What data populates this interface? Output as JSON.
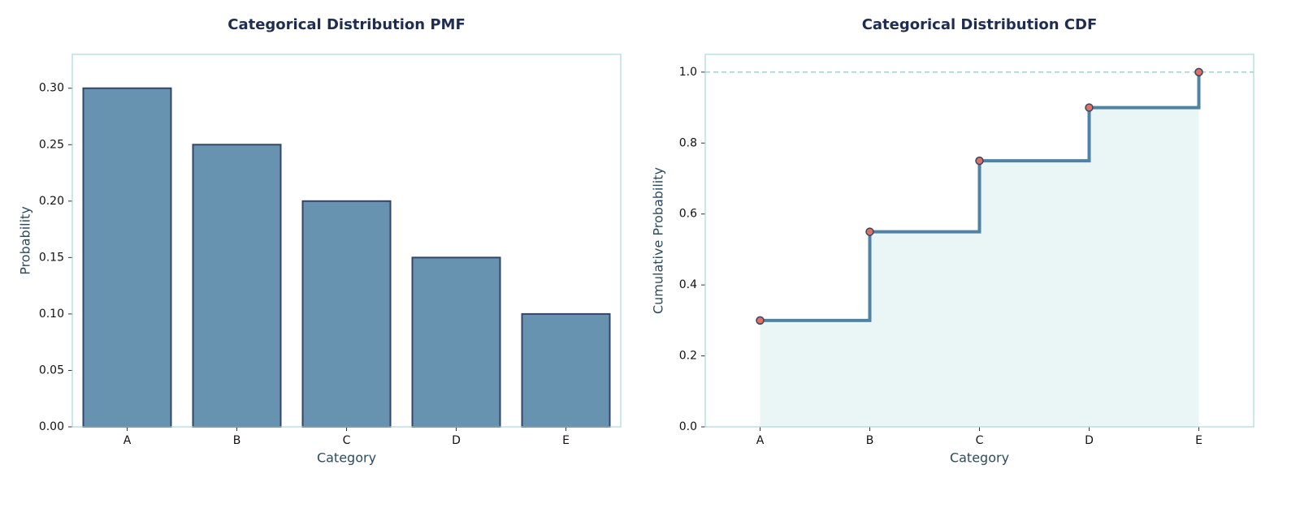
{
  "chart_data": [
    {
      "type": "bar",
      "title": "Categorical Distribution PMF",
      "xlabel": "Category",
      "ylabel": "Probability",
      "categories": [
        "A",
        "B",
        "C",
        "D",
        "E"
      ],
      "values": [
        0.3,
        0.25,
        0.2,
        0.15,
        0.1
      ],
      "color": "#6893b0",
      "edgecolor": "#34456a",
      "ylim": [
        0,
        0.33
      ],
      "yticks": [
        {
          "value": 0,
          "label": "0.00"
        },
        {
          "value": 0.05,
          "label": "0.05"
        },
        {
          "value": 0.1,
          "label": "0.10"
        },
        {
          "value": 0.15,
          "label": "0.15"
        },
        {
          "value": 0.2,
          "label": "0.20"
        },
        {
          "value": 0.25,
          "label": "0.25"
        },
        {
          "value": 0.3,
          "label": "0.30"
        }
      ]
    },
    {
      "type": "step",
      "title": "Categorical Distribution CDF",
      "xlabel": "Category",
      "ylabel": "Cumulative Probability",
      "categories": [
        "A",
        "B",
        "C",
        "D",
        "E"
      ],
      "values": [
        0.3,
        0.55,
        0.75,
        0.9,
        1.0
      ],
      "color": "#4f83a6",
      "marker_color": "#e07060",
      "fill_color": "#eaf5f6",
      "reference_line": 1.0,
      "ylim": [
        0,
        1.05
      ],
      "yticks": [
        {
          "value": 0,
          "label": "0.0"
        },
        {
          "value": 0.2,
          "label": "0.2"
        },
        {
          "value": 0.4,
          "label": "0.4"
        },
        {
          "value": 0.6,
          "label": "0.6"
        },
        {
          "value": 0.8,
          "label": "0.8"
        },
        {
          "value": 1.0,
          "label": "1.0"
        }
      ]
    }
  ]
}
